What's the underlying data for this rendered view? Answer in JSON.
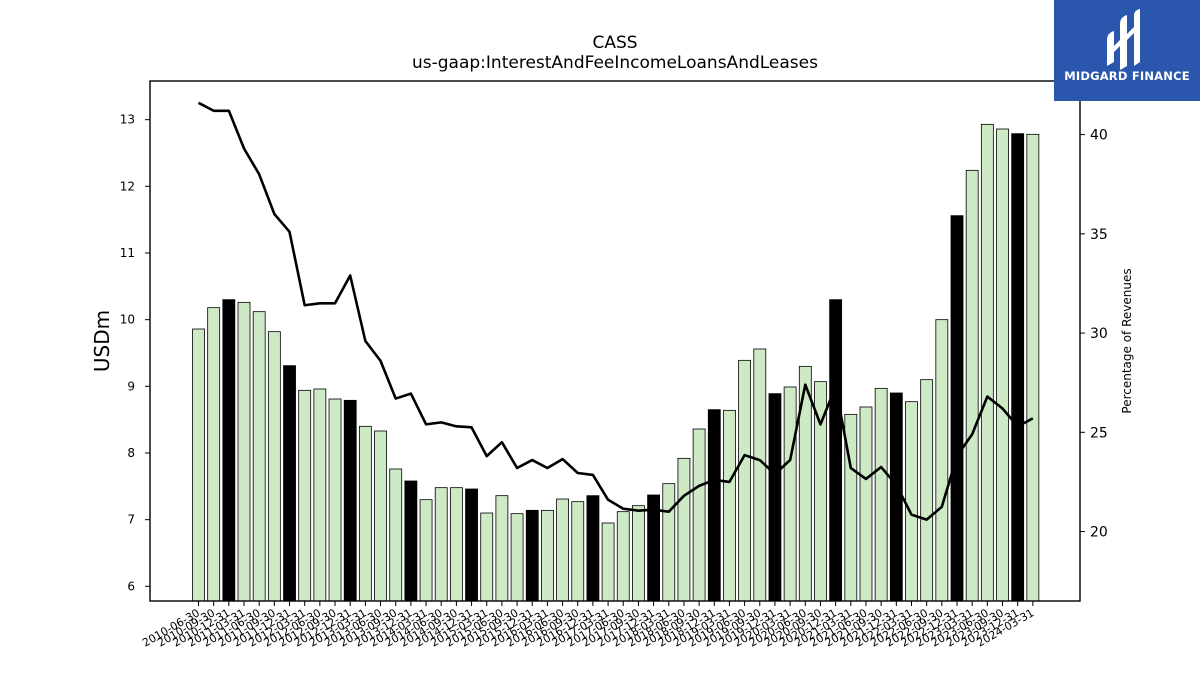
{
  "logo": {
    "text": "MIDGARD FINANCE",
    "bg_color": "#2a57ad"
  },
  "chart_data": {
    "type": "bar",
    "title": "CASS",
    "subtitle": "us-gaap:InterestAndFeeIncomeLoansAndLeases",
    "ylabel": "USDm",
    "y2label": "Percentage of Revenues",
    "ylim": [
      5.78,
      13.58
    ],
    "y2lim": [
      16.5,
      42.7
    ],
    "yticks": [
      6,
      7,
      8,
      9,
      10,
      11,
      12,
      13
    ],
    "y2ticks": [
      20,
      25,
      30,
      35,
      40
    ],
    "bar_color": "#cdeac5",
    "highlight_color": "#000000",
    "line_color": "#000000",
    "categories": [
      "2010-06-30",
      "2010-09-30",
      "2010-12-31",
      "2011-03-31",
      "2011-06-30",
      "2011-09-30",
      "2011-12-31",
      "2012-03-31",
      "2012-06-30",
      "2012-09-30",
      "2012-12-31",
      "2013-03-31",
      "2013-06-30",
      "2013-09-30",
      "2013-12-31",
      "2014-03-31",
      "2014-06-30",
      "2014-09-30",
      "2014-12-31",
      "2015-03-31",
      "2015-06-30",
      "2015-09-30",
      "2015-12-31",
      "2016-03-31",
      "2016-06-30",
      "2016-09-30",
      "2016-12-31",
      "2017-03-31",
      "2017-06-30",
      "2017-09-30",
      "2017-12-31",
      "2018-03-31",
      "2018-06-30",
      "2018-09-30",
      "2018-12-31",
      "2019-03-31",
      "2019-06-30",
      "2019-09-30",
      "2019-12-31",
      "2020-03-31",
      "2020-06-30",
      "2020-09-30",
      "2020-12-31",
      "2021-03-31",
      "2021-06-30",
      "2021-09-30",
      "2021-12-31",
      "2022-03-31",
      "2022-06-30",
      "2022-09-30",
      "2022-12-31",
      "2023-03-31",
      "2023-06-30",
      "2023-09-30",
      "2023-12-31",
      "2024-03-31"
    ],
    "visible_xtick_labels": [
      "2010-06-30",
      "2010-09-30",
      "2010-12-31",
      "2011-03-31",
      "2011-06-30",
      "2011-09-30",
      "2011-12-31",
      "2012-03-31",
      "2012-06-30",
      "2012-09-30",
      "2012-12-31",
      "2013-03-31",
      "2013-06-30",
      "2013-09-30",
      "2013-12-31",
      "2014-03-31",
      "2014-06-30",
      "2014-09-30",
      "2014-12-31",
      "2015-03-31",
      "2015-06-30",
      "2015-09-30",
      "2015-12-31",
      "2016-03-31",
      "2016-06-30",
      "2016-09-30",
      "2016-12-31",
      "2017-03-31",
      "2017-06-30",
      "2017-09-30",
      "2017-12-31",
      "2018-03-31",
      "2018-06-30",
      "2018-09-30",
      "2018-12-31",
      "2019-03-31",
      "2019-06-30",
      "2019-09-30",
      "2019-12-31",
      "2020-03-31",
      "2020-06-30",
      "2020-09-30",
      "2020-12-31",
      "2021-03-31",
      "2021-06-30",
      "2021-09-30",
      "2021-12-31",
      "2022-03-31",
      "2022-06-30",
      "2022-09-30",
      "2022-12-31",
      "2023-03-31",
      "2023-06-30",
      "2023-09-30",
      "2023-12-31",
      "2024-03-31"
    ],
    "highlight": [
      false,
      false,
      true,
      false,
      false,
      false,
      true,
      false,
      false,
      false,
      true,
      false,
      false,
      false,
      true,
      false,
      false,
      false,
      true,
      false,
      false,
      false,
      true,
      false,
      false,
      false,
      true,
      false,
      false,
      false,
      true,
      false,
      false,
      false,
      true,
      false,
      false,
      false,
      true,
      false,
      false,
      false,
      true,
      false,
      false,
      false,
      true,
      false,
      false,
      false,
      true,
      false,
      false,
      false,
      true,
      false
    ],
    "series": [
      {
        "axis": "left",
        "kind": "bar",
        "values": [
          9.86,
          10.18,
          10.3,
          10.26,
          10.12,
          9.82,
          9.31,
          8.94,
          8.96,
          8.81,
          8.79,
          8.4,
          8.33,
          7.76,
          7.58,
          7.3,
          7.48,
          7.48,
          7.46,
          7.1,
          7.36,
          7.09,
          7.14,
          7.14,
          7.31,
          7.27,
          7.36,
          6.95,
          7.12,
          7.21,
          7.37,
          7.54,
          7.92,
          8.36,
          8.65,
          8.64,
          9.39,
          9.56,
          8.89,
          8.99,
          9.3,
          9.07,
          10.3,
          8.58,
          8.69,
          8.97,
          8.9,
          8.77,
          9.1,
          10.0,
          11.56,
          12.24,
          12.93,
          12.86,
          12.79,
          12.78
        ]
      },
      {
        "axis": "right",
        "kind": "line",
        "values": [
          41.6,
          41.2,
          41.2,
          39.3,
          38.0,
          36.0,
          35.1,
          31.4,
          31.5,
          31.5,
          32.9,
          29.6,
          28.6,
          26.7,
          26.95,
          25.4,
          25.5,
          25.3,
          25.25,
          23.8,
          24.5,
          23.2,
          23.6,
          23.2,
          23.65,
          22.95,
          22.85,
          21.6,
          21.15,
          21.05,
          21.1,
          21.0,
          21.8,
          22.3,
          22.6,
          22.5,
          23.85,
          23.6,
          22.9,
          23.6,
          27.4,
          25.4,
          27.3,
          23.2,
          22.65,
          23.25,
          22.35,
          20.85,
          20.6,
          21.25,
          23.8,
          24.9,
          26.8,
          26.2,
          25.3,
          25.7
        ]
      }
    ]
  }
}
